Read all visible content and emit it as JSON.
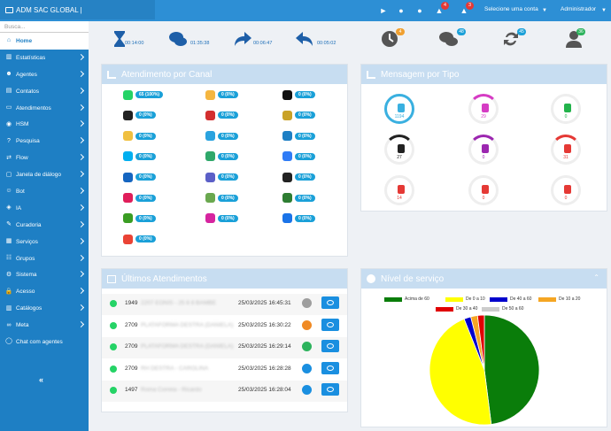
{
  "topbar": {
    "brand": "ADM SAC GLOBAL |",
    "badges": [
      "4",
      "3"
    ],
    "account_select": "Selecione uma conta",
    "user_select": "Administrador"
  },
  "sidebar": {
    "search_placeholder": "Busca...",
    "items": [
      {
        "label": "Home",
        "icon": "home-icon",
        "active": true
      },
      {
        "label": "Estatísticas",
        "icon": "chart-icon"
      },
      {
        "label": "Agentes",
        "icon": "agent-icon"
      },
      {
        "label": "Contatos",
        "icon": "contacts-icon"
      },
      {
        "label": "Atendimentos",
        "icon": "laptop-icon"
      },
      {
        "label": "HSM",
        "icon": "whatsapp-icon"
      },
      {
        "label": "Pesquisa",
        "icon": "survey-icon"
      },
      {
        "label": "Flow",
        "icon": "flow-icon"
      },
      {
        "label": "Janela de diálogo",
        "icon": "dialog-icon"
      },
      {
        "label": "Bot",
        "icon": "bot-icon"
      },
      {
        "label": "IA",
        "icon": "ai-icon"
      },
      {
        "label": "Curadoria",
        "icon": "curation-icon"
      },
      {
        "label": "Serviços",
        "icon": "services-icon"
      },
      {
        "label": "Grupos",
        "icon": "groups-icon"
      },
      {
        "label": "Sistema",
        "icon": "gear-icon"
      },
      {
        "label": "Acesso",
        "icon": "lock-icon"
      },
      {
        "label": "Catálogos",
        "icon": "catalog-icon"
      },
      {
        "label": "Meta",
        "icon": "meta-icon"
      },
      {
        "label": "Chat com agentes",
        "icon": "chat-icon"
      }
    ],
    "collapse_label": "«"
  },
  "stats": {
    "wait_time": "00:14:00",
    "chat_time": "01:35:38",
    "forward_time": "00:06:47",
    "reply_time": "00:05:02",
    "clock_badge": "4",
    "chats_badge": "48",
    "transfer_badge": "45",
    "agents_badge": "36"
  },
  "canal_panel": {
    "title": "Atendimento por Canal",
    "items": [
      {
        "name": "whatsapp",
        "value": "65 (100%)",
        "color": "#25d366"
      },
      {
        "name": "chat",
        "value": "0 (0%)",
        "color": "#f5b640"
      },
      {
        "name": "x",
        "value": "0 (0%)",
        "color": "#111111"
      },
      {
        "name": "wechat",
        "value": "0 (0%)",
        "color": "#222222"
      },
      {
        "name": "email",
        "value": "0 (0%)",
        "color": "#d32f2f"
      },
      {
        "name": "imessage",
        "value": "0 (0%)",
        "color": "#c9a227"
      },
      {
        "name": "sms",
        "value": "0 (0%)",
        "color": "#f0c040"
      },
      {
        "name": "telegram",
        "value": "0 (0%)",
        "color": "#2aa3df"
      },
      {
        "name": "voice",
        "value": "0 (0%)",
        "color": "#1e7fc4"
      },
      {
        "name": "skype",
        "value": "0 (0%)",
        "color": "#00aff0"
      },
      {
        "name": "phone",
        "value": "0 (0%)",
        "color": "#2fa86a"
      },
      {
        "name": "messenger",
        "value": "0 (0%)",
        "color": "#2f7cf6"
      },
      {
        "name": "outlook",
        "value": "0 (0%)",
        "color": "#1565c0"
      },
      {
        "name": "teams",
        "value": "0 (0%)",
        "color": "#5b5fc7"
      },
      {
        "name": "workplace",
        "value": "0 (0%)",
        "color": "#222222"
      },
      {
        "name": "slack",
        "value": "0 (0%)",
        "color": "#e01e5a"
      },
      {
        "name": "zendesk",
        "value": "0 (0%)",
        "color": "#6aa84f"
      },
      {
        "name": "line",
        "value": "0 (0%)",
        "color": "#2e7d32"
      },
      {
        "name": "mercadolivre",
        "value": "0 (0%)",
        "color": "#3a9d23"
      },
      {
        "name": "instagram",
        "value": "0 (0%)",
        "color": "#d6249f"
      },
      {
        "name": "gbm",
        "value": "0 (0%)",
        "color": "#1a73e8"
      },
      {
        "name": "google",
        "value": "0 (0%)",
        "color": "#ea4335"
      }
    ]
  },
  "mensagem_panel": {
    "title": "Mensagem por Tipo",
    "items": [
      {
        "name": "text",
        "value": "1194",
        "color": "#3ab0e0"
      },
      {
        "name": "image",
        "value": "29",
        "color": "#d63cc4"
      },
      {
        "name": "video",
        "value": "0",
        "color": "#22b34b"
      },
      {
        "name": "audio",
        "value": "27",
        "color": "#222222"
      },
      {
        "name": "location",
        "value": "0",
        "color": "#9c27b0"
      },
      {
        "name": "document",
        "value": "31",
        "color": "#e53935"
      },
      {
        "name": "bookmark",
        "value": "14",
        "color": "#e53935"
      },
      {
        "name": "clipboard",
        "value": "0",
        "color": "#e53935"
      },
      {
        "name": "interactive",
        "value": "0",
        "color": "#e53935"
      }
    ]
  },
  "ultimos_panel": {
    "title": "Últimos Atendimentos",
    "rows": [
      {
        "id": "1949",
        "blurred": "2207 EONIS - 25 8 8 BAMBE",
        "date": "25/03/2025 16:45:31",
        "status_color": "#9e9e9e"
      },
      {
        "id": "2709",
        "blurred": "PLATAFORMA DESTRA (DANIELA)",
        "date": "25/03/2025 16:30:22",
        "status_color": "#f08a24"
      },
      {
        "id": "2709",
        "blurred": "PLATAFORMA DESTRA (DANIELA)",
        "date": "25/03/2025 16:29:14",
        "status_color": "#2db35d"
      },
      {
        "id": "2709",
        "blurred": "RH DESTRA - CAROLINA",
        "date": "25/03/2025 16:28:28",
        "status_color": "#1a8fe0"
      },
      {
        "id": "1497",
        "blurred": "Roma Correia - Ricardo",
        "date": "25/03/2025 16:28:04",
        "status_color": "#1a8fe0"
      }
    ]
  },
  "nivel_panel": {
    "title": "Nível de serviço",
    "collapse_icon": "chevron-up-icon"
  },
  "chart_data": {
    "type": "pie",
    "title": "",
    "legend": [
      {
        "label": "Acima de 60",
        "color": "#0a7d0a"
      },
      {
        "label": "De 0 a 10",
        "color": "#ffff00"
      },
      {
        "label": "De 40 a 60",
        "color": "#0000cc"
      },
      {
        "label": "De 10 a 20",
        "color": "#f5a623"
      },
      {
        "label": "De 30 a 40",
        "color": "#e00000"
      },
      {
        "label": "De 50 a 60",
        "color": "#cccccc"
      }
    ],
    "categories": [
      "Acima de 60",
      "De 0 a 10",
      "De 40 a 60",
      "De 10 a 20",
      "De 30 a 40",
      "De 50 a 60"
    ],
    "values": [
      48,
      46,
      2,
      2,
      2,
      0
    ],
    "legend_position": "top"
  }
}
